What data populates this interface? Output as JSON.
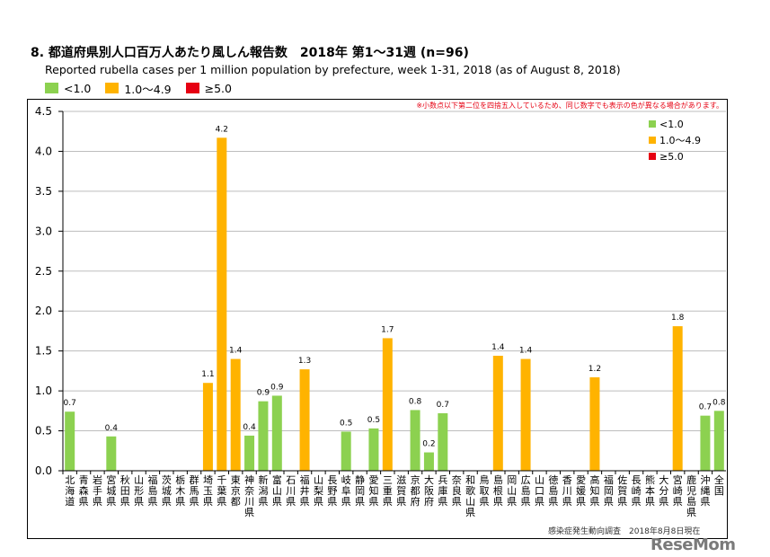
{
  "title": "8. 都道府県別人口百万人あたり風しん報告数　2018年 第1～31週 (n=96)",
  "subtitle": "Reported rubella cases per 1 million population by prefecture, week 1-31, 2018 (as of August 8, 2018)",
  "note": "※小数点以下第二位を四捨五入しているため、同じ数字でも表示の色が異なる場合があります。",
  "source": "感染症発生動向調査　2018年8月8日現在",
  "watermark": "ReseMom",
  "legend": [
    {
      "label": "<1.0",
      "color": "#8cd150"
    },
    {
      "label": "1.0～4.9",
      "color": "#ffb300"
    },
    {
      "label": "≥5.0",
      "color": "#e60012"
    }
  ],
  "chart_data": {
    "type": "bar",
    "title": "8. 都道府県別人口百万人あたり風しん報告数　2018年 第1～31週 (n=96)",
    "subtitle": "Reported rubella cases per 1 million population by prefecture, week 1-31, 2018 (as of August 8, 2018)",
    "ylim": [
      0,
      4.5
    ],
    "yticks": [
      "0.0",
      "0.5",
      "1.0",
      "1.5",
      "2.0",
      "2.5",
      "3.0",
      "3.5",
      "4.0",
      "4.5"
    ],
    "grid": true,
    "legend_position": "top-right",
    "categories": [
      "北海道",
      "青森県",
      "岩手県",
      "宮城県",
      "秋田県",
      "山形県",
      "福島県",
      "茨城県",
      "栃木県",
      "群馬県",
      "埼玉県",
      "千葉県",
      "東京都",
      "神奈川県",
      "新潟県",
      "富山県",
      "石川県",
      "福井県",
      "山梨県",
      "長野県",
      "岐阜県",
      "静岡県",
      "愛知県",
      "三重県",
      "滋賀県",
      "京都府",
      "大阪府",
      "兵庫県",
      "奈良県",
      "和歌山県",
      "鳥取県",
      "島根県",
      "岡山県",
      "広島県",
      "山口県",
      "徳島県",
      "香川県",
      "愛媛県",
      "高知県",
      "福岡県",
      "佐賀県",
      "長崎県",
      "熊本県",
      "大分県",
      "宮崎県",
      "鹿児島県",
      "沖縄県",
      "全国"
    ],
    "values": [
      0.74,
      0,
      0,
      0.43,
      0,
      0,
      0,
      0,
      0,
      0,
      1.1,
      4.17,
      1.4,
      0.44,
      0.87,
      0.94,
      0,
      1.27,
      0,
      0,
      0.49,
      0,
      0.53,
      1.66,
      0,
      0.76,
      0.23,
      0.72,
      0,
      0,
      0,
      1.44,
      0,
      1.4,
      0,
      0,
      0,
      0,
      1.17,
      0,
      0,
      0,
      0,
      0,
      1.81,
      0,
      0.69,
      0.75
    ],
    "labels": [
      "0.7",
      "",
      "",
      "0.4",
      "",
      "",
      "",
      "",
      "",
      "",
      "1.1",
      "4.2",
      "1.4",
      "0.4",
      "0.9",
      "0.9",
      "",
      "1.3",
      "",
      "",
      "0.5",
      "",
      "0.5",
      "1.7",
      "",
      "0.8",
      "0.2",
      "0.7",
      "",
      "",
      "",
      "1.4",
      "",
      "1.4",
      "",
      "",
      "",
      "",
      "1.2",
      "",
      "",
      "",
      "",
      "",
      "1.8",
      "",
      "0.7",
      "0.8"
    ],
    "colors": [
      "#8cd150",
      "#8cd150",
      "#8cd150",
      "#8cd150",
      "#8cd150",
      "#8cd150",
      "#8cd150",
      "#8cd150",
      "#8cd150",
      "#8cd150",
      "#ffb300",
      "#ffb300",
      "#ffb300",
      "#8cd150",
      "#8cd150",
      "#8cd150",
      "#8cd150",
      "#ffb300",
      "#8cd150",
      "#8cd150",
      "#8cd150",
      "#8cd150",
      "#8cd150",
      "#ffb300",
      "#8cd150",
      "#8cd150",
      "#8cd150",
      "#8cd150",
      "#8cd150",
      "#8cd150",
      "#8cd150",
      "#ffb300",
      "#8cd150",
      "#ffb300",
      "#8cd150",
      "#8cd150",
      "#8cd150",
      "#8cd150",
      "#ffb300",
      "#8cd150",
      "#8cd150",
      "#8cd150",
      "#8cd150",
      "#8cd150",
      "#ffb300",
      "#8cd150",
      "#8cd150",
      "#8cd150"
    ]
  }
}
